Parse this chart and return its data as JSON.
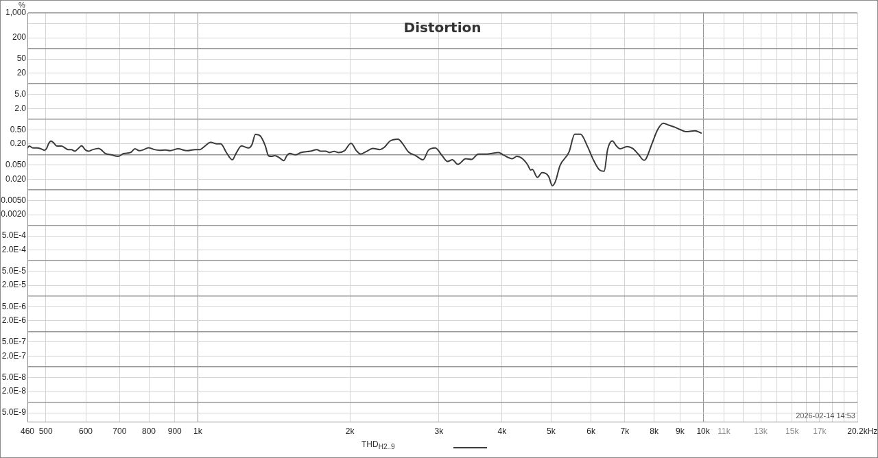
{
  "chart_data": {
    "type": "line",
    "title": "Distortion",
    "xlabel": "Hz",
    "ylabel": "%",
    "x": [
      460,
      464,
      472,
      481,
      489,
      497,
      502,
      507,
      512,
      518,
      526,
      537,
      554,
      562,
      571,
      580,
      589,
      598,
      608,
      620,
      636,
      643,
      656,
      674,
      695,
      713,
      736,
      751,
      766,
      782,
      799,
      820,
      841,
      863,
      881,
      914,
      952,
      987,
      1010,
      1030,
      1060,
      1090,
      1110,
      1140,
      1170,
      1190,
      1220,
      1260,
      1280,
      1300,
      1330,
      1360,
      1380,
      1400,
      1420,
      1450,
      1480,
      1500,
      1520,
      1560,
      1600,
      1670,
      1720,
      1750,
      1790,
      1820,
      1860,
      1900,
      1950,
      2010,
      2060,
      2100,
      2150,
      2220,
      2290,
      2340,
      2400,
      2490,
      2540,
      2610,
      2700,
      2790,
      2860,
      2950,
      3040,
      3120,
      3190,
      3270,
      3390,
      3480,
      3590,
      3740,
      3940,
      4020,
      4190,
      4280,
      4390,
      4490,
      4560,
      4590,
      4700,
      4800,
      4900,
      4950,
      5030,
      5100,
      5210,
      5430,
      5570,
      5720,
      5900,
      6080,
      6240,
      6370,
      6470,
      6610,
      6740,
      6850,
      7070,
      7250,
      7440,
      7640,
      7710,
      7920,
      8120,
      8340,
      8550,
      8780,
      9010,
      9240,
      9630,
      9910
    ],
    "series": [
      {
        "name": "THD$_{H2..9}$",
        "color": "#3a3a3a",
        "values": [
          0.153,
          0.173,
          0.153,
          0.153,
          0.145,
          0.132,
          0.149,
          0.207,
          0.24,
          0.216,
          0.173,
          0.173,
          0.138,
          0.138,
          0.124,
          0.149,
          0.178,
          0.138,
          0.124,
          0.138,
          0.149,
          0.138,
          0.107,
          0.098,
          0.0886,
          0.106,
          0.114,
          0.145,
          0.128,
          0.138,
          0.156,
          0.138,
          0.132,
          0.134,
          0.128,
          0.145,
          0.128,
          0.138,
          0.138,
          0.168,
          0.222,
          0.201,
          0.201,
          0.111,
          0.0709,
          0.107,
          0.175,
          0.153,
          0.192,
          0.37,
          0.332,
          0.175,
          0.0919,
          0.0886,
          0.0927,
          0.0811,
          0.0672,
          0.0927,
          0.107,
          0.098,
          0.114,
          0.124,
          0.138,
          0.124,
          0.124,
          0.114,
          0.123,
          0.114,
          0.128,
          0.207,
          0.128,
          0.103,
          0.119,
          0.149,
          0.138,
          0.16,
          0.24,
          0.271,
          0.207,
          0.119,
          0.0927,
          0.0709,
          0.132,
          0.153,
          0.0952,
          0.0637,
          0.0709,
          0.0526,
          0.0762,
          0.0729,
          0.103,
          0.103,
          0.114,
          0.098,
          0.0762,
          0.0886,
          0.0762,
          0.0526,
          0.0363,
          0.038,
          0.0225,
          0.0308,
          0.0281,
          0.0232,
          0.0132,
          0.0172,
          0.0487,
          0.119,
          0.375,
          0.375,
          0.173,
          0.0657,
          0.0363,
          0.0336,
          0.138,
          0.243,
          0.173,
          0.145,
          0.168,
          0.149,
          0.103,
          0.0687,
          0.0762,
          0.201,
          0.49,
          0.766,
          0.679,
          0.594,
          0.506,
          0.442,
          0.469,
          0.404
        ]
      }
    ],
    "log": "xy",
    "xlim": [
      460,
      20200
    ],
    "ylim": [
      2.8e-09,
      1000
    ],
    "xticks": [
      460,
      500,
      600,
      700,
      800,
      900,
      {
        "value": 1000,
        "label": "1k"
      },
      {
        "value": 2000,
        "label": "2k"
      },
      {
        "value": 3000,
        "label": "3k"
      },
      {
        "value": 4000,
        "label": "4k"
      },
      {
        "value": 5000,
        "label": "5k"
      },
      {
        "value": 6000,
        "label": "6k"
      },
      {
        "value": 7000,
        "label": "7k"
      },
      {
        "value": 8000,
        "label": "8k"
      },
      {
        "value": 9000,
        "label": "9k"
      },
      {
        "value": 10000,
        "label": "10k"
      },
      {
        "value": 11000,
        "label": "11k"
      },
      {
        "value": 12000,
        "label": null
      },
      {
        "value": 13000,
        "label": "13k"
      },
      {
        "value": 14000,
        "label": null
      },
      {
        "value": 15000,
        "label": "15k"
      },
      {
        "value": 16000,
        "label": null
      },
      {
        "value": 17000,
        "label": "17k"
      },
      {
        "value": 18000,
        "label": null
      },
      {
        "value": 19000,
        "label": null
      },
      {
        "value": 20200,
        "label": "20.2k"
      }
    ],
    "yticks": [
      {
        "value": 5e-09,
        "label": "5.0E-9"
      },
      {
        "value": 1e-08,
        "label": null
      },
      {
        "value": 2e-08,
        "label": "2.0E-8"
      },
      {
        "value": 5e-08,
        "label": "5.0E-8"
      },
      {
        "value": 1e-07,
        "label": null
      },
      {
        "value": 2e-07,
        "label": "2.0E-7"
      },
      {
        "value": 5e-07,
        "label": "5.0E-7"
      },
      {
        "value": 1e-06,
        "label": null
      },
      {
        "value": 2e-06,
        "label": "2.0E-6"
      },
      {
        "value": 5e-06,
        "label": "5.0E-6"
      },
      {
        "value": 1e-05,
        "label": null
      },
      {
        "value": 2e-05,
        "label": "2.0E-5"
      },
      {
        "value": 5e-05,
        "label": "5.0E-5"
      },
      {
        "value": 0.0001,
        "label": null
      },
      {
        "value": 0.0002,
        "label": "2.0E-4"
      },
      {
        "value": 0.0005,
        "label": "5.0E-4"
      },
      {
        "value": 0.001,
        "label": null
      },
      {
        "value": 0.002,
        "label": "0.0020"
      },
      {
        "value": 0.005,
        "label": "0.0050"
      },
      {
        "value": 0.01,
        "label": null
      },
      {
        "value": 0.02,
        "label": "0.020"
      },
      {
        "value": 0.05,
        "label": "0.050"
      },
      {
        "value": 0.1,
        "label": null
      },
      {
        "value": 0.2,
        "label": "0.20"
      },
      {
        "value": 0.5,
        "label": "0.50"
      },
      {
        "value": 1,
        "label": null
      },
      {
        "value": 2,
        "label": "2.0"
      },
      {
        "value": 5,
        "label": "5.0"
      },
      {
        "value": 10,
        "label": null
      },
      20,
      50,
      {
        "value": 100,
        "label": null
      },
      200,
      {
        "value": 500,
        "label": null
      },
      {
        "value": 1000,
        "label": "1,000"
      }
    ],
    "grid": true,
    "legend": "bottom",
    "annotations": [
      "2026-02-14 14:53"
    ]
  }
}
